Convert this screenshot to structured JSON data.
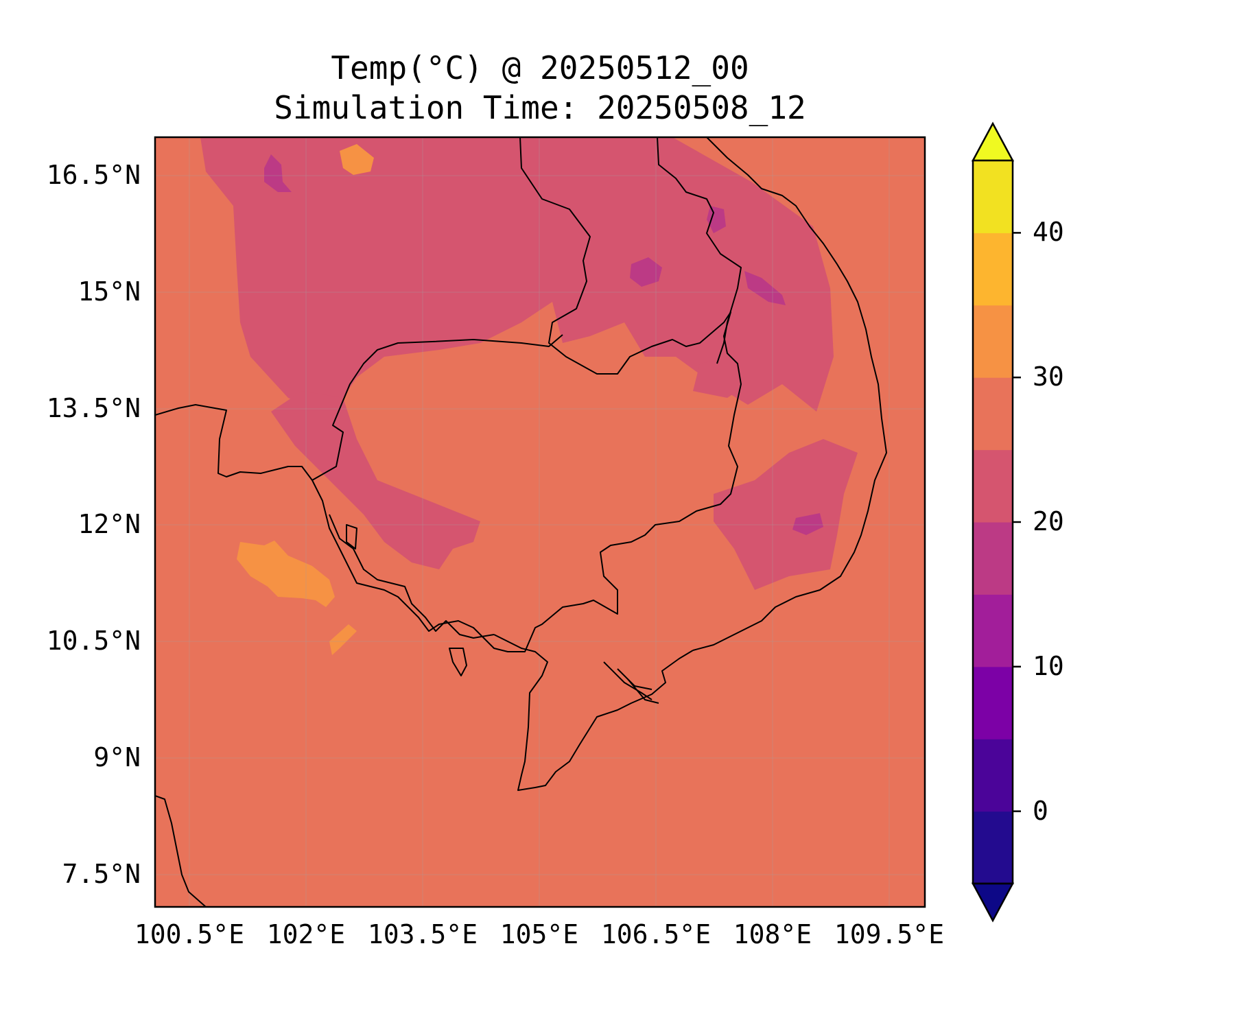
{
  "title": {
    "line1": "Temp(°C) @ 20250512_00",
    "line2": "Simulation Time: 20250508_12"
  },
  "map": {
    "lon_ticks": [
      "100.5°E",
      "102°E",
      "103.5°E",
      "105°E",
      "106.5°E",
      "108°E",
      "109.5°E"
    ],
    "lat_ticks": [
      "16.5°N",
      "15°N",
      "13.5°N",
      "12°N",
      "10.5°N",
      "9°N",
      "7.5°N"
    ],
    "extent": {
      "lon_min": 100.5,
      "lon_max": 110.4,
      "lat_min": 7.1,
      "lat_max": 17.0
    },
    "gridlines": true,
    "background_band_color": "#e8735a"
  },
  "colorbar": {
    "tick_labels": [
      "0",
      "10",
      "20",
      "30",
      "40"
    ],
    "levels": [
      -5,
      0,
      5,
      10,
      15,
      20,
      25,
      30,
      35,
      40,
      45
    ],
    "colors": [
      "#230b8f",
      "#4b0499",
      "#7c01a6",
      "#a21e9a",
      "#bc3a85",
      "#d5556f",
      "#e8735a",
      "#f69244",
      "#fdb52f",
      "#f2e121"
    ],
    "under_color": "#0d0887",
    "over_color": "#f0f921",
    "extend": "both"
  }
}
